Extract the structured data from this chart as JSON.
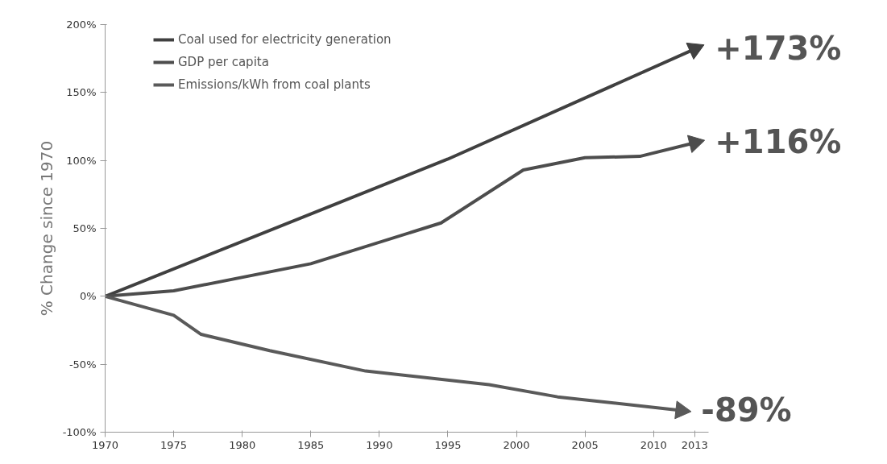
{
  "chart_data": {
    "type": "line",
    "ylabel": "% Change since 1970",
    "xlim": [
      1970,
      2014
    ],
    "xticks": [
      1970,
      1975,
      1980,
      1985,
      1990,
      1995,
      2000,
      2005,
      2010,
      2013
    ],
    "ylim": [
      -100,
      200
    ],
    "yticks": [
      {
        "value": -100,
        "label": "-100%"
      },
      {
        "value": -50,
        "label": "-50%"
      },
      {
        "value": 0,
        "label": "0%"
      },
      {
        "value": 50,
        "label": "50%"
      },
      {
        "value": 100,
        "label": "100%"
      },
      {
        "value": 150,
        "label": "150%"
      },
      {
        "value": 200,
        "label": "200%"
      }
    ],
    "grid": false,
    "legend": "top left",
    "marker": "none",
    "line_style": "solid",
    "series": [
      {
        "name": "Coal used for electricity generation",
        "color": "#404040",
        "x": [
          1970,
          1995,
          2013
        ],
        "values": [
          0,
          101,
          182
        ]
      },
      {
        "name": "GDP per capita",
        "color": "#4d4d4d",
        "x": [
          1970,
          1975,
          1985,
          1994.5,
          2000.5,
          2005,
          2009,
          2013
        ],
        "values": [
          0,
          4,
          24,
          54,
          93,
          102,
          103,
          113
        ]
      },
      {
        "name": "Emissions/kWh from coal plants",
        "color": "#5a5a5a",
        "x": [
          1970,
          1975,
          1977,
          1982,
          1989,
          1998,
          2003,
          2012
        ],
        "values": [
          0,
          -14,
          -28,
          -40,
          -55,
          -65,
          -74,
          -84
        ]
      }
    ],
    "annotations": [
      "+173%",
      "+116%",
      "-89%"
    ]
  }
}
